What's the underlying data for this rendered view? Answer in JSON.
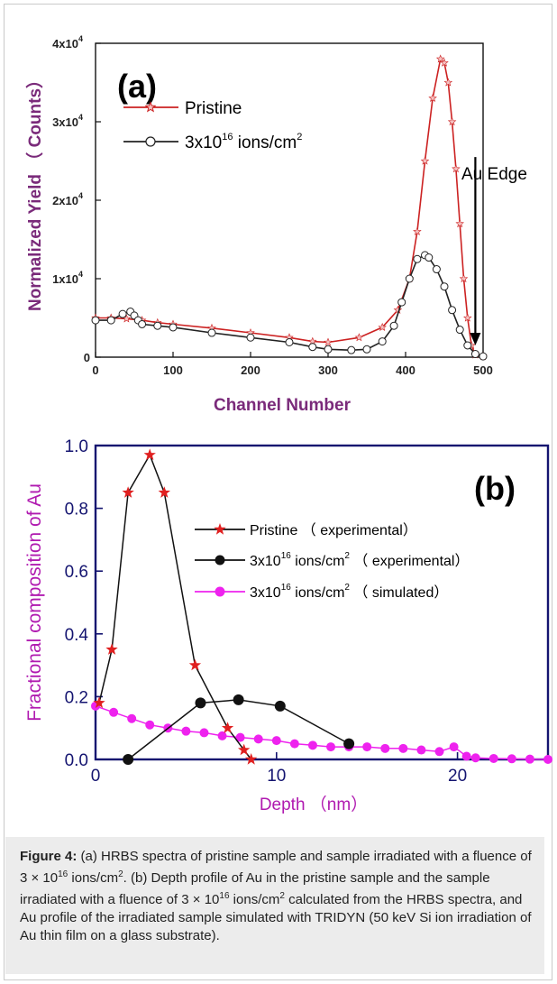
{
  "chart_data": [
    {
      "type": "line",
      "panel_label": "(a)",
      "xlabel": "Channel Number",
      "ylabel": "Normalized Yield （ Counts）",
      "xlim": [
        0,
        500
      ],
      "ylim": [
        0,
        40000
      ],
      "x_ticks": [
        "0",
        "100",
        "200",
        "300",
        "400",
        "500"
      ],
      "y_ticks": [
        "0",
        "1x10",
        "2x10",
        "3x10",
        "4x10"
      ],
      "y_tick_exponent": "4",
      "legend_position": "top-left",
      "annotation": {
        "text": "Au Edge",
        "x": 490,
        "y_from": 25500,
        "y_to": 1500
      },
      "series": [
        {
          "name": "Pristine",
          "color": "#cc2222",
          "marker": "star",
          "x": [
            0,
            20,
            40,
            60,
            80,
            100,
            150,
            200,
            250,
            280,
            300,
            340,
            370,
            390,
            405,
            415,
            425,
            435,
            445,
            450,
            455,
            460,
            465,
            470,
            475,
            480,
            485,
            490,
            500
          ],
          "y": [
            5000,
            5000,
            4900,
            4700,
            4400,
            4200,
            3700,
            3100,
            2500,
            2000,
            1900,
            2500,
            3800,
            6000,
            10000,
            16000,
            25000,
            33000,
            38000,
            37500,
            35000,
            30000,
            24000,
            17000,
            10000,
            5000,
            1500,
            300,
            100
          ]
        },
        {
          "name": "3x10",
          "name_sup": "16",
          "name_suffix": " ions/cm",
          "name_suffix_sup": "2",
          "color": "#222222",
          "marker": "circle",
          "x": [
            0,
            20,
            35,
            45,
            50,
            55,
            60,
            80,
            100,
            150,
            200,
            250,
            280,
            300,
            330,
            350,
            370,
            385,
            395,
            405,
            415,
            425,
            430,
            440,
            450,
            460,
            470,
            480,
            490,
            500
          ],
          "y": [
            4700,
            4700,
            5500,
            5800,
            5300,
            4700,
            4200,
            4000,
            3800,
            3100,
            2500,
            1900,
            1300,
            1000,
            900,
            1000,
            2000,
            4000,
            7000,
            10000,
            12500,
            13000,
            12700,
            11200,
            9000,
            6000,
            3500,
            1500,
            400,
            100
          ]
        }
      ]
    },
    {
      "type": "line",
      "panel_label": "(b)",
      "xlabel": "Depth （nm）",
      "ylabel": "Fractional composition of Au",
      "xlim": [
        0,
        25
      ],
      "ylim": [
        0,
        1.0
      ],
      "x_ticks": [
        "0",
        "10",
        "20"
      ],
      "y_ticks": [
        "0.0",
        "0.2",
        "0.4",
        "0.6",
        "0.8",
        "1.0"
      ],
      "legend_position": "center-right",
      "series": [
        {
          "name": "Pristine （ experimental）",
          "color": "#e02020",
          "marker": "star",
          "x": [
            0.2,
            0.9,
            1.8,
            3.0,
            3.8,
            5.5,
            7.3,
            8.2,
            8.6
          ],
          "y": [
            0.18,
            0.35,
            0.85,
            0.97,
            0.85,
            0.3,
            0.1,
            0.03,
            0.0
          ]
        },
        {
          "name": "3x10",
          "name_sup": "16",
          "name_suffix": " ions/cm",
          "name_suffix_sup": "2",
          "name_tail": " （ experimental）",
          "color": "#111111",
          "marker": "dot",
          "x": [
            1.8,
            5.8,
            7.9,
            10.2,
            14.0
          ],
          "y": [
            0.0,
            0.18,
            0.19,
            0.17,
            0.05
          ]
        },
        {
          "name": "3x10",
          "name_sup": "16",
          "name_suffix": " ions/cm",
          "name_suffix_sup": "2",
          "name_tail": " （ simulated）",
          "color": "#ee22ee",
          "marker": "dot",
          "x": [
            0,
            1,
            2,
            3,
            4,
            5,
            6,
            7,
            8,
            9,
            10,
            11,
            12,
            13,
            14,
            15,
            16,
            17,
            18,
            19,
            19.8,
            20.5,
            21,
            22,
            23,
            24,
            25
          ],
          "y": [
            0.17,
            0.15,
            0.13,
            0.11,
            0.1,
            0.09,
            0.085,
            0.075,
            0.07,
            0.065,
            0.06,
            0.05,
            0.045,
            0.04,
            0.04,
            0.04,
            0.035,
            0.035,
            0.03,
            0.025,
            0.04,
            0.01,
            0.005,
            0.003,
            0.002,
            0.001,
            0.0
          ]
        }
      ]
    }
  ],
  "caption": {
    "label": "Figure 4:",
    "text_1": " (a) HRBS spectra of pristine sample and sample irradiated with a fluence of 3 × 10",
    "sup_1": "16",
    "text_2": " ions/cm",
    "sup_2": "2",
    "text_3": ". (b) Depth profile of Au in the pristine sample and the sample irradiated with a fluence of 3 × 10",
    "sup_3": "16",
    "text_4": " ions/cm",
    "sup_4": "2",
    "text_5": " calculated from the HRBS spectra, and Au profile of the irradiated sample simulated with TRIDYN (50 keV Si ion irradiation of Au thin film on a glass substrate)."
  }
}
